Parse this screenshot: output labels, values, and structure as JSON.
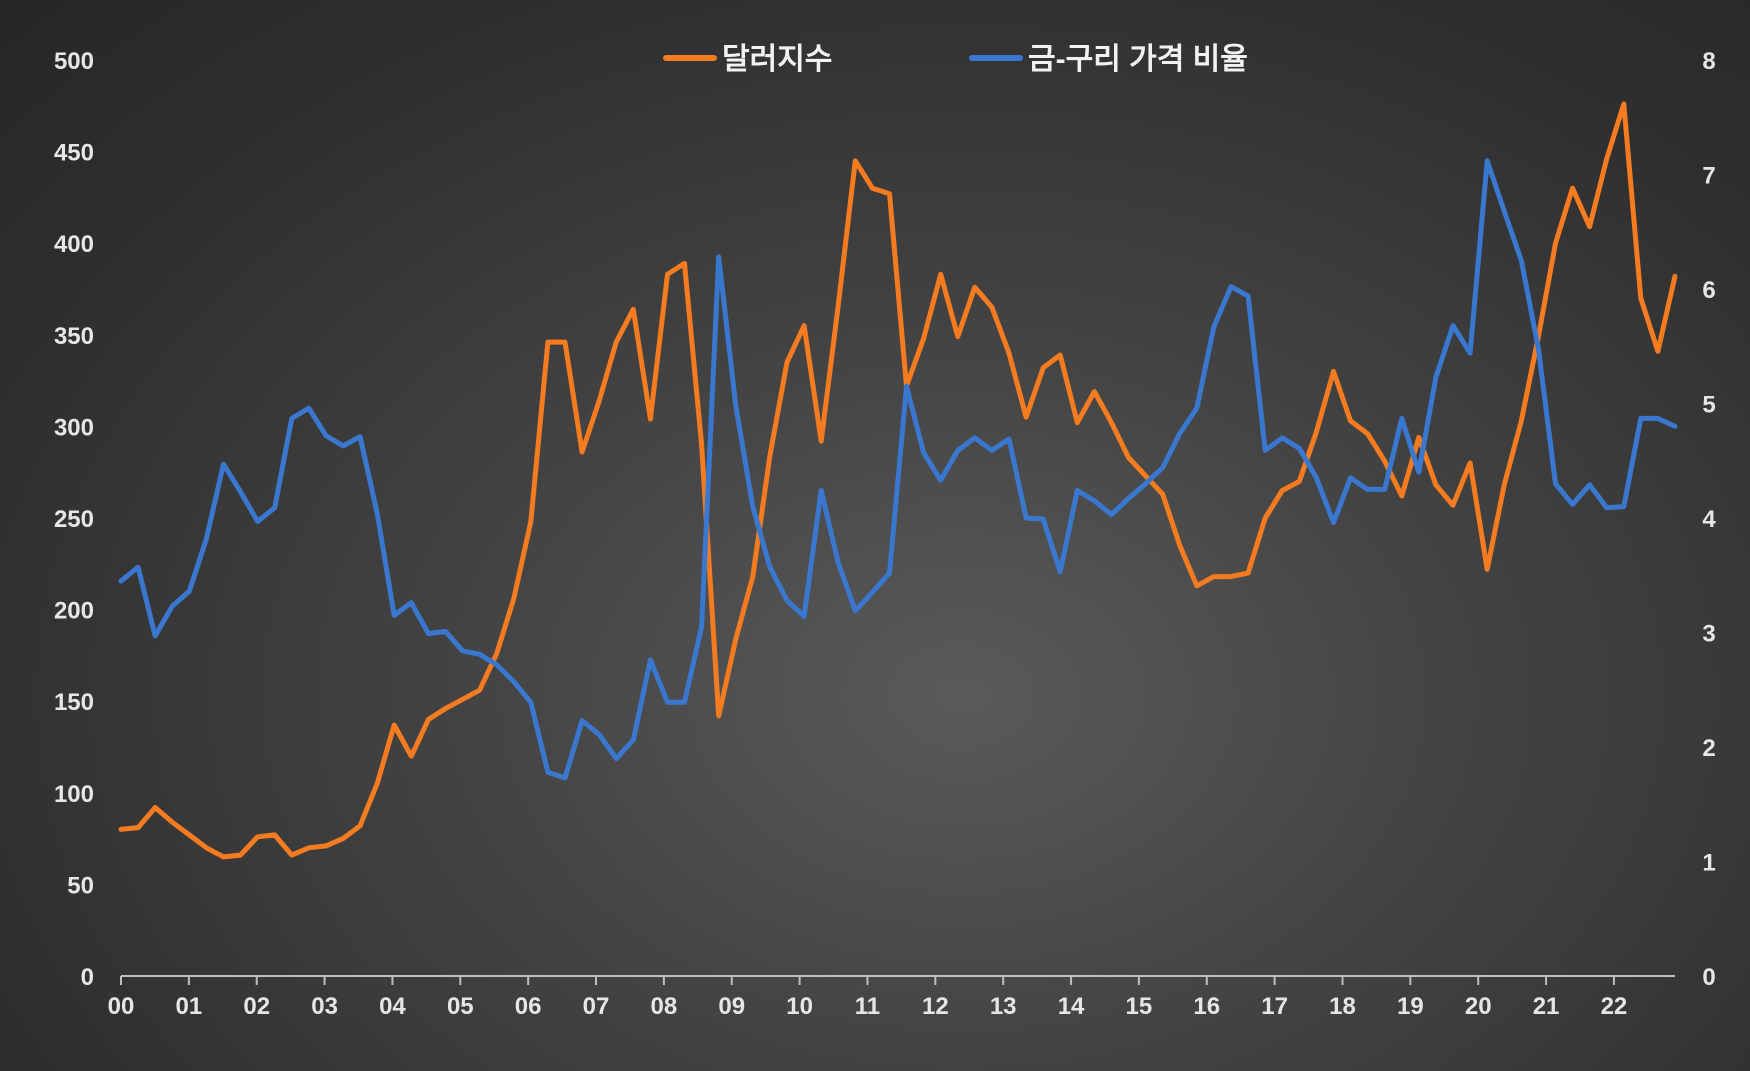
{
  "chart_data": {
    "type": "line",
    "title": "",
    "xlabel": "",
    "ylabel": "",
    "ylim": [
      0,
      500
    ],
    "y2lim": [
      0,
      8
    ],
    "y_ticks": [
      "0",
      "50",
      "100",
      "150",
      "200",
      "250",
      "300",
      "350",
      "400",
      "450",
      "500"
    ],
    "y2_ticks": [
      "0",
      "1",
      "2",
      "3",
      "4",
      "5",
      "6",
      "7",
      "8"
    ],
    "x_ticks": [
      "00",
      "01",
      "02",
      "03",
      "04",
      "05",
      "06",
      "07",
      "08",
      "09",
      "10",
      "11",
      "12",
      "13",
      "14",
      "15",
      "16",
      "17",
      "18",
      "19",
      "20",
      "21",
      "22"
    ],
    "x_range": [
      0,
      22.9
    ],
    "legend_position": "top-center",
    "series": [
      {
        "name": "달러지수",
        "axis": "left",
        "color": "#f47b20",
        "values": [
          80,
          81,
          92,
          84,
          77,
          70,
          65,
          66,
          76,
          77,
          66,
          70,
          71,
          75,
          82,
          105,
          137,
          120,
          140,
          146,
          151,
          156,
          176,
          206,
          248,
          346,
          346,
          286,
          314,
          346,
          364,
          304,
          383,
          389,
          290,
          142,
          184,
          218,
          284,
          335,
          355,
          292,
          366,
          445,
          430,
          427,
          322,
          348,
          383,
          349,
          376,
          365,
          340,
          305,
          332,
          339,
          302,
          319,
          302,
          283,
          273,
          263,
          235,
          213,
          218,
          218,
          220,
          250,
          265,
          270,
          297,
          330,
          303,
          296,
          281,
          262,
          294,
          268,
          257,
          280,
          222,
          268,
          303,
          349,
          400,
          430,
          409,
          446,
          476,
          370,
          341,
          382
        ]
      },
      {
        "name": "금-구리 가격 비율",
        "axis": "right",
        "color": "#3a78d0",
        "values": [
          3.45,
          3.57,
          2.97,
          3.23,
          3.36,
          3.82,
          4.47,
          4.23,
          3.97,
          4.09,
          4.87,
          4.96,
          4.72,
          4.63,
          4.71,
          4.04,
          3.15,
          3.26,
          2.99,
          3.01,
          2.84,
          2.81,
          2.72,
          2.57,
          2.39,
          1.78,
          1.73,
          2.23,
          2.11,
          1.9,
          2.06,
          2.76,
          2.39,
          2.39,
          3.05,
          6.28,
          4.98,
          4.1,
          3.57,
          3.28,
          3.14,
          4.24,
          3.61,
          3.19,
          3.35,
          3.52,
          5.15,
          4.57,
          4.33,
          4.59,
          4.7,
          4.59,
          4.69,
          4.0,
          3.99,
          3.53,
          4.24,
          4.15,
          4.03,
          4.17,
          4.3,
          4.44,
          4.74,
          4.96,
          5.67,
          6.02,
          5.94,
          4.59,
          4.7,
          4.61,
          4.35,
          3.96,
          4.35,
          4.25,
          4.25,
          4.87,
          4.4,
          5.23,
          5.68,
          5.44,
          7.12,
          6.68,
          6.25,
          5.48,
          4.3,
          4.12,
          4.29,
          4.09,
          4.1,
          4.87,
          4.87,
          4.8
        ]
      }
    ]
  }
}
